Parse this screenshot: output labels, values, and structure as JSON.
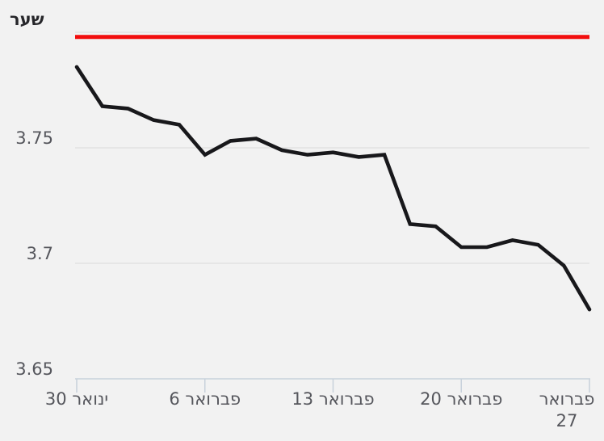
{
  "title": "שער",
  "chart_data": {
    "type": "line",
    "title": "שער",
    "direction": "rtl",
    "legend": "none",
    "grid": "horizontal",
    "x_axis": {
      "tick_labels": [
        "ינואר 30",
        "פברואר 6",
        "פברואר 13",
        "פברואר 20",
        "פברואר 27"
      ],
      "tick_point_indices": [
        0,
        5,
        10,
        15,
        20
      ]
    },
    "y_axis": {
      "ticks": [
        {
          "label": "3.75",
          "value": 3.75
        },
        {
          "label": "3.7",
          "value": 3.7
        },
        {
          "label": "3.65",
          "value": 3.65
        }
      ],
      "gridline_values": [
        3.8,
        3.75,
        3.7
      ],
      "ylim": [
        3.65,
        3.8
      ]
    },
    "series": [
      {
        "name": "שער",
        "color": "#18181b",
        "values": [
          3.785,
          3.768,
          3.767,
          3.762,
          3.76,
          3.747,
          3.753,
          3.754,
          3.749,
          3.747,
          3.748,
          3.746,
          3.747,
          3.717,
          3.716,
          3.707,
          3.707,
          3.71,
          3.708,
          3.699,
          3.68
        ]
      }
    ],
    "reference_line": {
      "value": 3.798,
      "color": "#f20d0d"
    },
    "colors": {
      "background": "#f2f2f2",
      "grid": "#dedede",
      "axis": "#c8d1db",
      "tick_label": "#55565c",
      "title": "#26262a"
    }
  }
}
